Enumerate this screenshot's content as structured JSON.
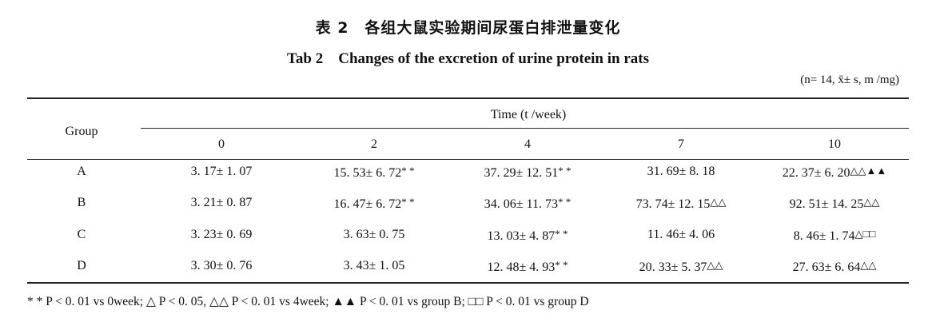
{
  "title_cn": "表 2　各组大鼠实验期间尿蛋白排泄量变化",
  "title_en": "Tab 2　Changes of the excretion of urine protein in rats",
  "note": "(n= 14, x̄± s, m /mg)",
  "header": {
    "group": "Group",
    "time": "Time (t /week)",
    "weeks": [
      "0",
      "2",
      "4",
      "7",
      "10"
    ]
  },
  "rows": [
    {
      "group": "A",
      "cells": [
        {
          "value": "3. 17± 1. 07",
          "mark": ""
        },
        {
          "value": "15. 53± 6. 72",
          "mark": "* *"
        },
        {
          "value": "37. 29± 12. 51",
          "mark": "* *"
        },
        {
          "value": "31. 69± 8. 18",
          "mark": ""
        },
        {
          "value": "22. 37± 6. 20",
          "mark": "△△▲▲"
        }
      ]
    },
    {
      "group": "B",
      "cells": [
        {
          "value": "3. 21± 0. 87",
          "mark": ""
        },
        {
          "value": "16. 47± 6. 72",
          "mark": "* *"
        },
        {
          "value": "34. 06± 11. 73",
          "mark": "* *"
        },
        {
          "value": "73. 74± 12. 15",
          "mark": "△△"
        },
        {
          "value": "92. 51± 14. 25",
          "mark": "△△"
        }
      ]
    },
    {
      "group": "C",
      "cells": [
        {
          "value": "3. 23± 0. 69",
          "mark": ""
        },
        {
          "value": "3. 63± 0. 75",
          "mark": ""
        },
        {
          "value": "13. 03± 4. 87",
          "mark": "* *"
        },
        {
          "value": "11. 46± 4. 06",
          "mark": ""
        },
        {
          "value": "8. 46± 1. 74",
          "mark": "△□□"
        }
      ]
    },
    {
      "group": "D",
      "cells": [
        {
          "value": "3. 30± 0. 76",
          "mark": ""
        },
        {
          "value": "3. 43± 1. 05",
          "mark": ""
        },
        {
          "value": "12. 48± 4. 93",
          "mark": "* *"
        },
        {
          "value": "20. 33± 5. 37",
          "mark": "△△"
        },
        {
          "value": "27. 63± 6. 64",
          "mark": "△△"
        }
      ]
    }
  ],
  "footnote": "* *  P < 0. 01 vs 0week; △ P < 0. 05, △△ P < 0. 01 vs 4week; ▲▲ P < 0. 01 vs group B; □□ P < 0. 01 vs group D"
}
